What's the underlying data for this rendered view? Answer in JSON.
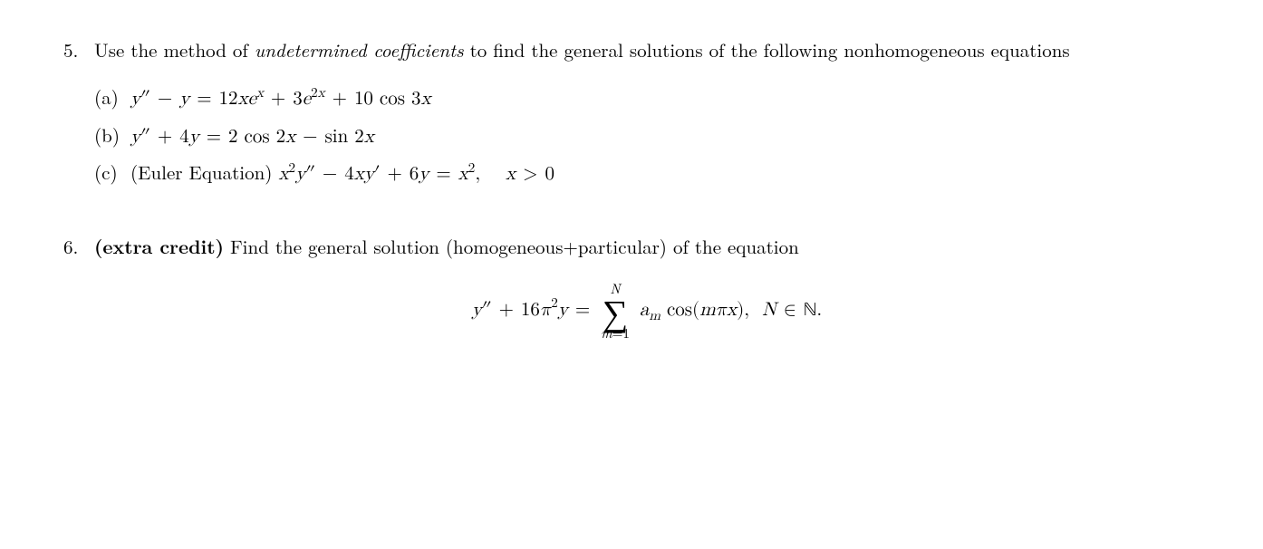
{
  "page": {
    "background_color": "#ffffff",
    "text_color": "#000000",
    "font_family": "Computer Modern Roman / serif",
    "base_font_size_pt": 16
  },
  "problems": [
    {
      "number": "5.",
      "intro_pre": "Use the method of ",
      "intro_italic": "undetermined coefficients",
      "intro_post": " to find the general solutions of the following nonhomogeneous equations",
      "subparts": [
        {
          "label": "(a)",
          "equation_tex": "y'' - y = 12x e^{x} + 3e^{2x} + 10\\cos 3x",
          "equation_display": "y″ − y = 12xeˣ + 3e²ˣ + 10 cos 3x"
        },
        {
          "label": "(b)",
          "equation_tex": "y'' + 4y = 2\\cos 2x - \\sin 2x",
          "equation_display": "y″ + 4y = 2 cos 2x − sin 2x"
        },
        {
          "label": "(c)",
          "prefix": "(Euler Equation) ",
          "equation_tex": "x^{2}y'' - 4xy' + 6y = x^{2},\\quad x>0",
          "equation_display": "x²y″ − 4xy′ + 6y = x²,    x > 0"
        }
      ]
    },
    {
      "number": "6.",
      "intro_bold": "(extra credit)",
      "intro_rest": " Find the general solution (homogeneous+particular) of the equation",
      "display_equation": {
        "tex": "y'' + 16\\pi^{2} y = \\sum_{m=1}^{N} a_{m}\\cos(m\\pi x),\\ N\\in\\mathbb{N}.",
        "lhs": "y″ + 16π²y",
        "sum_lower": "m=1",
        "sum_upper": "N",
        "summand": "aₘ cos(mπx),",
        "tail": "N ∈ ℕ."
      }
    }
  ]
}
